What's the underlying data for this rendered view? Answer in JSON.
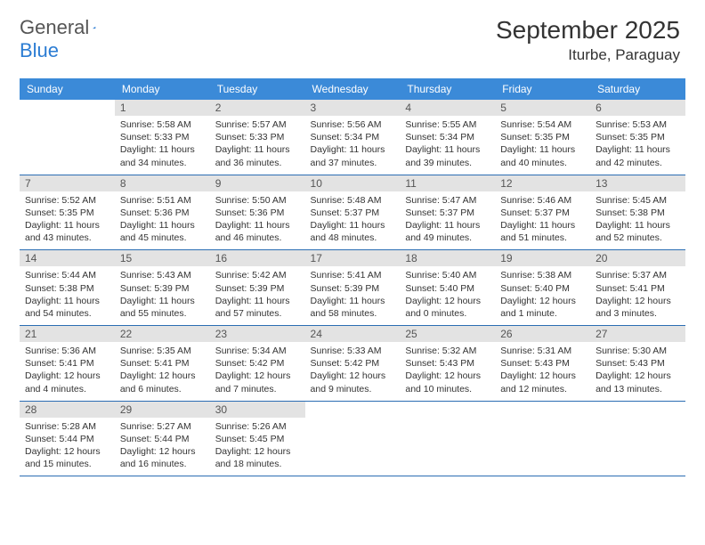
{
  "logo": {
    "text_a": "General",
    "text_b": "Blue"
  },
  "title": "September 2025",
  "location": "Iturbe, Paraguay",
  "colors": {
    "header_bg": "#3b8ad8",
    "header_text": "#ffffff",
    "daynum_bg": "#e3e3e3",
    "daynum_text": "#555555",
    "row_border": "#2b6db3",
    "body_text": "#333333"
  },
  "day_labels": [
    "Sunday",
    "Monday",
    "Tuesday",
    "Wednesday",
    "Thursday",
    "Friday",
    "Saturday"
  ],
  "weeks": [
    [
      {
        "num": "",
        "lines": []
      },
      {
        "num": "1",
        "lines": [
          "Sunrise: 5:58 AM",
          "Sunset: 5:33 PM",
          "Daylight: 11 hours",
          "and 34 minutes."
        ]
      },
      {
        "num": "2",
        "lines": [
          "Sunrise: 5:57 AM",
          "Sunset: 5:33 PM",
          "Daylight: 11 hours",
          "and 36 minutes."
        ]
      },
      {
        "num": "3",
        "lines": [
          "Sunrise: 5:56 AM",
          "Sunset: 5:34 PM",
          "Daylight: 11 hours",
          "and 37 minutes."
        ]
      },
      {
        "num": "4",
        "lines": [
          "Sunrise: 5:55 AM",
          "Sunset: 5:34 PM",
          "Daylight: 11 hours",
          "and 39 minutes."
        ]
      },
      {
        "num": "5",
        "lines": [
          "Sunrise: 5:54 AM",
          "Sunset: 5:35 PM",
          "Daylight: 11 hours",
          "and 40 minutes."
        ]
      },
      {
        "num": "6",
        "lines": [
          "Sunrise: 5:53 AM",
          "Sunset: 5:35 PM",
          "Daylight: 11 hours",
          "and 42 minutes."
        ]
      }
    ],
    [
      {
        "num": "7",
        "lines": [
          "Sunrise: 5:52 AM",
          "Sunset: 5:35 PM",
          "Daylight: 11 hours",
          "and 43 minutes."
        ]
      },
      {
        "num": "8",
        "lines": [
          "Sunrise: 5:51 AM",
          "Sunset: 5:36 PM",
          "Daylight: 11 hours",
          "and 45 minutes."
        ]
      },
      {
        "num": "9",
        "lines": [
          "Sunrise: 5:50 AM",
          "Sunset: 5:36 PM",
          "Daylight: 11 hours",
          "and 46 minutes."
        ]
      },
      {
        "num": "10",
        "lines": [
          "Sunrise: 5:48 AM",
          "Sunset: 5:37 PM",
          "Daylight: 11 hours",
          "and 48 minutes."
        ]
      },
      {
        "num": "11",
        "lines": [
          "Sunrise: 5:47 AM",
          "Sunset: 5:37 PM",
          "Daylight: 11 hours",
          "and 49 minutes."
        ]
      },
      {
        "num": "12",
        "lines": [
          "Sunrise: 5:46 AM",
          "Sunset: 5:37 PM",
          "Daylight: 11 hours",
          "and 51 minutes."
        ]
      },
      {
        "num": "13",
        "lines": [
          "Sunrise: 5:45 AM",
          "Sunset: 5:38 PM",
          "Daylight: 11 hours",
          "and 52 minutes."
        ]
      }
    ],
    [
      {
        "num": "14",
        "lines": [
          "Sunrise: 5:44 AM",
          "Sunset: 5:38 PM",
          "Daylight: 11 hours",
          "and 54 minutes."
        ]
      },
      {
        "num": "15",
        "lines": [
          "Sunrise: 5:43 AM",
          "Sunset: 5:39 PM",
          "Daylight: 11 hours",
          "and 55 minutes."
        ]
      },
      {
        "num": "16",
        "lines": [
          "Sunrise: 5:42 AM",
          "Sunset: 5:39 PM",
          "Daylight: 11 hours",
          "and 57 minutes."
        ]
      },
      {
        "num": "17",
        "lines": [
          "Sunrise: 5:41 AM",
          "Sunset: 5:39 PM",
          "Daylight: 11 hours",
          "and 58 minutes."
        ]
      },
      {
        "num": "18",
        "lines": [
          "Sunrise: 5:40 AM",
          "Sunset: 5:40 PM",
          "Daylight: 12 hours",
          "and 0 minutes."
        ]
      },
      {
        "num": "19",
        "lines": [
          "Sunrise: 5:38 AM",
          "Sunset: 5:40 PM",
          "Daylight: 12 hours",
          "and 1 minute."
        ]
      },
      {
        "num": "20",
        "lines": [
          "Sunrise: 5:37 AM",
          "Sunset: 5:41 PM",
          "Daylight: 12 hours",
          "and 3 minutes."
        ]
      }
    ],
    [
      {
        "num": "21",
        "lines": [
          "Sunrise: 5:36 AM",
          "Sunset: 5:41 PM",
          "Daylight: 12 hours",
          "and 4 minutes."
        ]
      },
      {
        "num": "22",
        "lines": [
          "Sunrise: 5:35 AM",
          "Sunset: 5:41 PM",
          "Daylight: 12 hours",
          "and 6 minutes."
        ]
      },
      {
        "num": "23",
        "lines": [
          "Sunrise: 5:34 AM",
          "Sunset: 5:42 PM",
          "Daylight: 12 hours",
          "and 7 minutes."
        ]
      },
      {
        "num": "24",
        "lines": [
          "Sunrise: 5:33 AM",
          "Sunset: 5:42 PM",
          "Daylight: 12 hours",
          "and 9 minutes."
        ]
      },
      {
        "num": "25",
        "lines": [
          "Sunrise: 5:32 AM",
          "Sunset: 5:43 PM",
          "Daylight: 12 hours",
          "and 10 minutes."
        ]
      },
      {
        "num": "26",
        "lines": [
          "Sunrise: 5:31 AM",
          "Sunset: 5:43 PM",
          "Daylight: 12 hours",
          "and 12 minutes."
        ]
      },
      {
        "num": "27",
        "lines": [
          "Sunrise: 5:30 AM",
          "Sunset: 5:43 PM",
          "Daylight: 12 hours",
          "and 13 minutes."
        ]
      }
    ],
    [
      {
        "num": "28",
        "lines": [
          "Sunrise: 5:28 AM",
          "Sunset: 5:44 PM",
          "Daylight: 12 hours",
          "and 15 minutes."
        ]
      },
      {
        "num": "29",
        "lines": [
          "Sunrise: 5:27 AM",
          "Sunset: 5:44 PM",
          "Daylight: 12 hours",
          "and 16 minutes."
        ]
      },
      {
        "num": "30",
        "lines": [
          "Sunrise: 5:26 AM",
          "Sunset: 5:45 PM",
          "Daylight: 12 hours",
          "and 18 minutes."
        ]
      },
      {
        "num": "",
        "lines": []
      },
      {
        "num": "",
        "lines": []
      },
      {
        "num": "",
        "lines": []
      },
      {
        "num": "",
        "lines": []
      }
    ]
  ]
}
